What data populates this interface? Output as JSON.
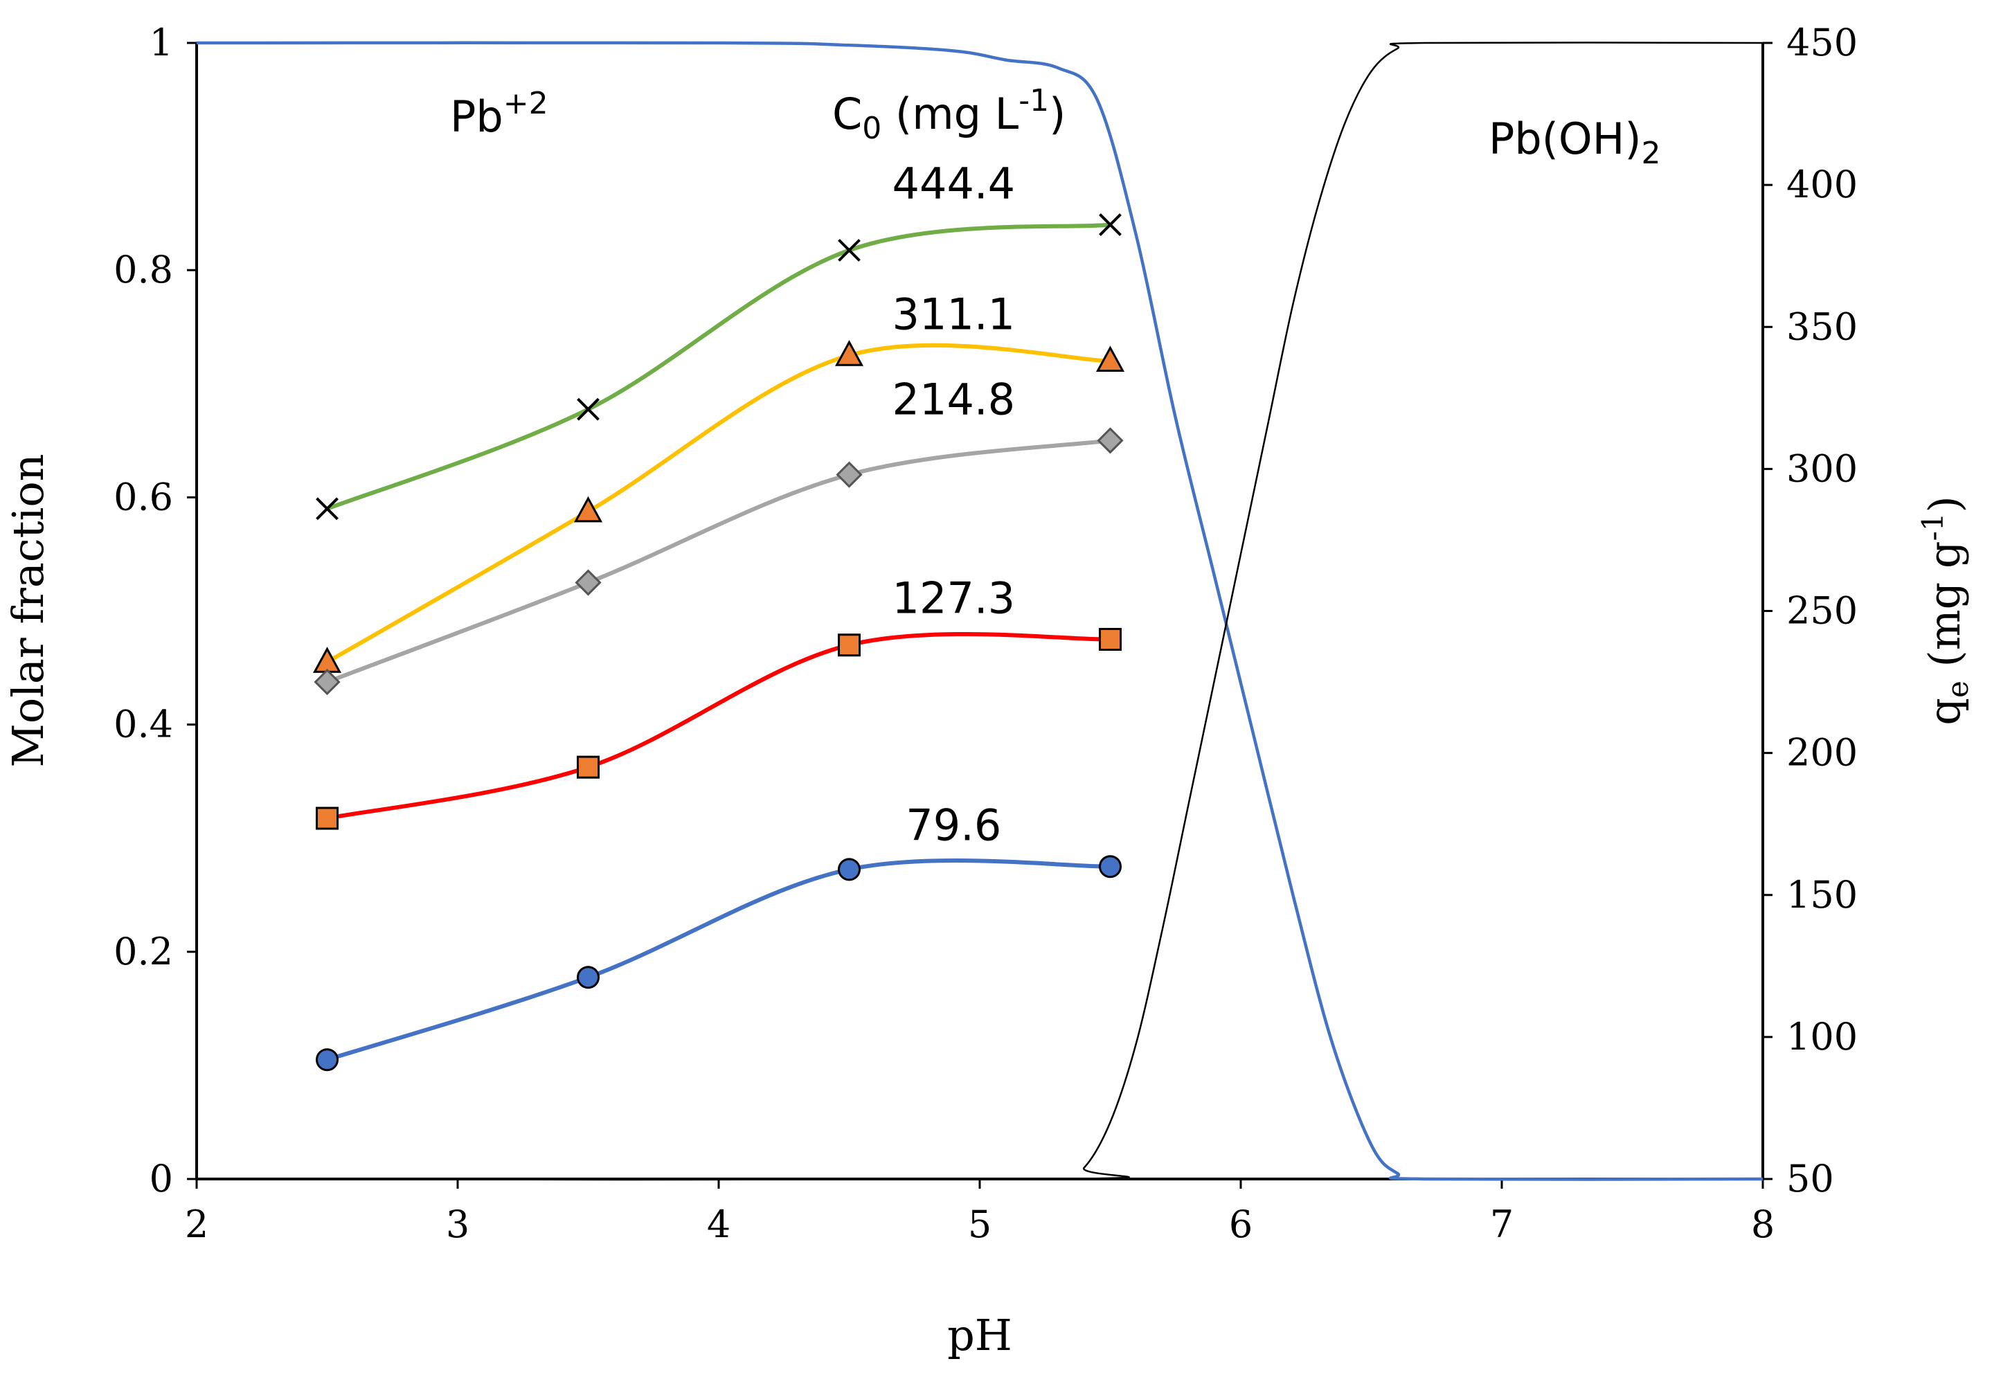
{
  "chart_data": {
    "type": "line",
    "title": "",
    "xlabel": "pH",
    "ylabel_left": "Molar fraction",
    "ylabel_right": {
      "main": "q",
      "sub": "e",
      "unit_pre": " (mg g",
      "unit_sup": "-1",
      "unit_post": ")"
    },
    "xlim": [
      2,
      8
    ],
    "ylim_left": [
      0,
      1
    ],
    "ylim_right": [
      50,
      450
    ],
    "x_ticks": [
      "2",
      "3",
      "4",
      "5",
      "6",
      "7",
      "8"
    ],
    "y_left_ticks": [
      "0",
      "0.2",
      "0.4",
      "0.6",
      "0.8",
      "1"
    ],
    "y_right_ticks": [
      "50",
      "100",
      "150",
      "200",
      "250",
      "300",
      "350",
      "400",
      "450"
    ],
    "annotations": {
      "pb2": {
        "base": "Pb",
        "sup": "+2"
      },
      "c0": {
        "base": "C",
        "sub": "0",
        "mid": " (mg L",
        "sup": "-1",
        "post": ")"
      },
      "pboh2": {
        "base": "Pb(OH)",
        "sub": "2"
      }
    },
    "speciation": [
      {
        "name": "Pb+2",
        "axis": "left",
        "color": "#4472C4",
        "x": [
          2,
          4,
          4.5,
          4.9,
          5.1,
          5.3,
          5.45,
          5.6,
          5.75,
          5.9,
          6.05,
          6.2,
          6.35,
          6.5,
          6.6,
          6.7,
          8
        ],
        "y": [
          1,
          1,
          0.998,
          0.993,
          0.985,
          0.978,
          0.95,
          0.83,
          0.67,
          0.53,
          0.39,
          0.25,
          0.12,
          0.03,
          0.005,
          0,
          0
        ]
      },
      {
        "name": "Pb(OH)2",
        "axis": "left",
        "color": "#000000",
        "x": [
          2,
          5.3,
          5.4,
          5.5,
          5.6,
          5.7,
          5.8,
          5.9,
          6.0,
          6.1,
          6.2,
          6.3,
          6.4,
          6.5,
          6.6,
          6.7,
          8
        ],
        "y": [
          0,
          0,
          0.01,
          0.05,
          0.12,
          0.22,
          0.33,
          0.44,
          0.55,
          0.66,
          0.77,
          0.86,
          0.93,
          0.975,
          0.995,
          1,
          1
        ]
      }
    ],
    "series": [
      {
        "name": "444.4",
        "marker": "x",
        "line_color": "#70AD47",
        "marker_fill": "none",
        "x": [
          2.5,
          3.5,
          4.5,
          5.5
        ],
        "y": [
          286,
          321,
          377,
          386
        ]
      },
      {
        "name": "311.1",
        "marker": "triangle",
        "line_color": "#FFC000",
        "marker_fill": "#ED7D31",
        "x": [
          2.5,
          3.5,
          4.5,
          5.5
        ],
        "y": [
          232,
          285,
          340,
          338
        ]
      },
      {
        "name": "214.8",
        "marker": "diamond",
        "line_color": "#A5A5A5",
        "marker_fill": "#A5A5A5",
        "x": [
          2.5,
          3.5,
          4.5,
          5.5
        ],
        "y": [
          225,
          260,
          298,
          310
        ]
      },
      {
        "name": "127.3",
        "marker": "square",
        "line_color": "#FF0000",
        "marker_fill": "#ED7D31",
        "x": [
          2.5,
          3.5,
          4.5,
          5.5
        ],
        "y": [
          177,
          195,
          238,
          240
        ]
      },
      {
        "name": "79.6",
        "marker": "circle",
        "line_color": "#4472C4",
        "marker_fill": "#4472C4",
        "x": [
          2.5,
          3.5,
          4.5,
          5.5
        ],
        "y": [
          92,
          121,
          159,
          160
        ]
      }
    ]
  }
}
